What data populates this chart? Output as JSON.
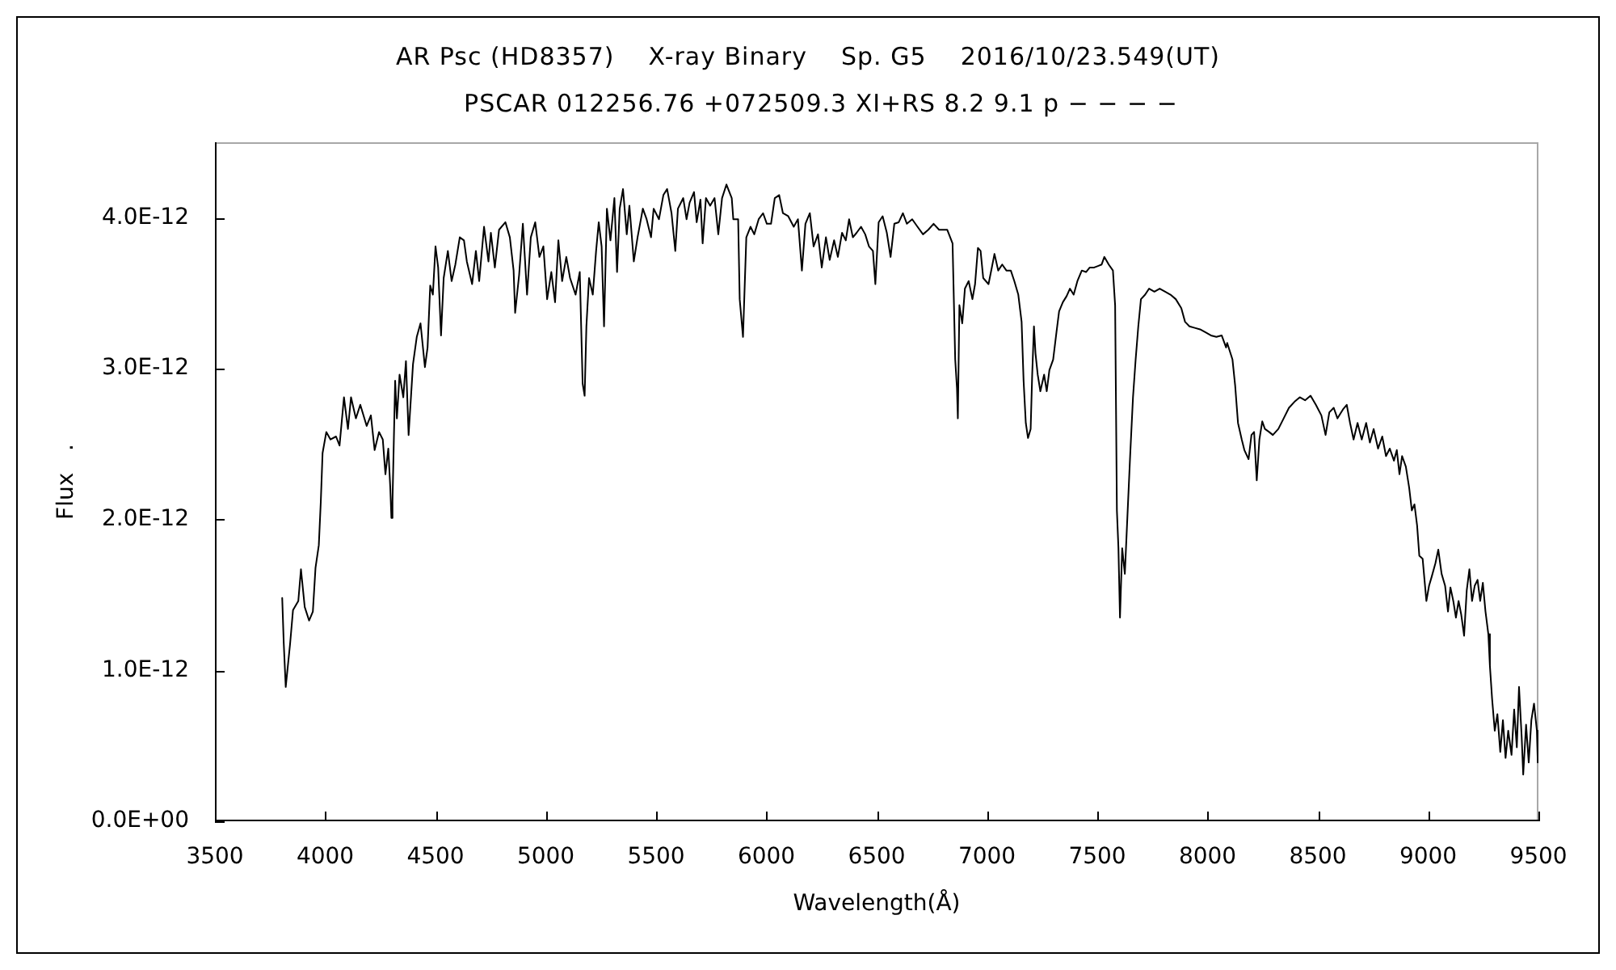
{
  "chart_data": {
    "type": "line",
    "title": "AR Psc (HD8357)    X-ray Binary    Sp. G5    2016/10/23.549(UT)",
    "subtitle": "PSCAR 012256.76 +072509.3 XI+RS 8.2 9.1 p − − − −",
    "xlabel": "Wavelength(Å)",
    "ylabel": "Flux   .",
    "color": "#000000",
    "xlim": [
      3500,
      9500
    ],
    "xticks": [
      3500,
      4000,
      4500,
      5000,
      5500,
      6000,
      6500,
      7000,
      7500,
      8000,
      8500,
      9000,
      9500
    ],
    "ylim": [
      0,
      4.5e-12
    ],
    "yticks": [
      {
        "value": 0,
        "label": "0.0E+00"
      },
      {
        "value": 1e-12,
        "label": "1.0E-12"
      },
      {
        "value": 2e-12,
        "label": "2.0E-12"
      },
      {
        "value": 3e-12,
        "label": "3.0E-12"
      },
      {
        "value": 4e-12,
        "label": "4.0E-12"
      }
    ],
    "x": [
      3805,
      3812,
      3821,
      3841,
      3854,
      3878,
      3890,
      3907,
      3927,
      3944,
      3956,
      3971,
      3980,
      3988,
      4005,
      4024,
      4049,
      4065,
      4085,
      4103,
      4117,
      4139,
      4159,
      4188,
      4207,
      4224,
      4244,
      4261,
      4273,
      4286,
      4295,
      4300,
      4305,
      4317,
      4325,
      4337,
      4354,
      4366,
      4378,
      4398,
      4415,
      4432,
      4452,
      4464,
      4476,
      4488,
      4500,
      4512,
      4525,
      4537,
      4556,
      4573,
      4590,
      4610,
      4629,
      4642,
      4666,
      4683,
      4698,
      4720,
      4740,
      4751,
      4769,
      4788,
      4817,
      4837,
      4854,
      4861,
      4879,
      4896,
      4915,
      4932,
      4952,
      4971,
      4989,
      5006,
      5025,
      5042,
      5057,
      5074,
      5093,
      5110,
      5135,
      5154,
      5167,
      5176,
      5184,
      5196,
      5213,
      5228,
      5240,
      5253,
      5264,
      5277,
      5293,
      5311,
      5323,
      5335,
      5350,
      5367,
      5379,
      5399,
      5416,
      5440,
      5457,
      5477,
      5489,
      5513,
      5533,
      5550,
      5570,
      5587,
      5599,
      5623,
      5638,
      5652,
      5672,
      5684,
      5701,
      5711,
      5726,
      5745,
      5765,
      5782,
      5799,
      5819,
      5843,
      5850,
      5872,
      5879,
      5894,
      5909,
      5928,
      5945,
      5965,
      5985,
      6002,
      6021,
      6038,
      6058,
      6075,
      6099,
      6124,
      6143,
      6161,
      6177,
      6197,
      6214,
      6234,
      6251,
      6270,
      6287,
      6307,
      6324,
      6343,
      6360,
      6375,
      6392,
      6409,
      6429,
      6448,
      6465,
      6483,
      6494,
      6509,
      6527,
      6546,
      6563,
      6580,
      6600,
      6619,
      6637,
      6661,
      6685,
      6710,
      6734,
      6758,
      6783,
      6820,
      6844,
      6856,
      6864,
      6868,
      6875,
      6888,
      6900,
      6917,
      6934,
      6946,
      6959,
      6971,
      6983,
      7007,
      7022,
      7034,
      7051,
      7069,
      7088,
      7108,
      7124,
      7142,
      7157,
      7166,
      7176,
      7186,
      7198,
      7205,
      7213,
      7220,
      7230,
      7242,
      7259,
      7271,
      7283,
      7300,
      7315,
      7327,
      7344,
      7361,
      7376,
      7393,
      7410,
      7430,
      7449,
      7466,
      7486,
      7503,
      7520,
      7532,
      7552,
      7571,
      7581,
      7589,
      7596,
      7603,
      7613,
      7625,
      7637,
      7649,
      7662,
      7674,
      7686,
      7698,
      7717,
      7735,
      7759,
      7783,
      7808,
      7832,
      7856,
      7881,
      7898,
      7918,
      7942,
      7966,
      7991,
      8015,
      8040,
      8064,
      8084,
      8089,
      8113,
      8125,
      8138,
      8155,
      8167,
      8186,
      8199,
      8211,
      8223,
      8235,
      8248,
      8260,
      8279,
      8296,
      8321,
      8345,
      8369,
      8394,
      8418,
      8442,
      8467,
      8491,
      8516,
      8535,
      8552,
      8572,
      8589,
      8614,
      8631,
      8646,
      8662,
      8680,
      8699,
      8719,
      8736,
      8753,
      8773,
      8792,
      8809,
      8826,
      8845,
      8858,
      8870,
      8882,
      8899,
      8914,
      8926,
      8938,
      8950,
      8960,
      8975,
      8992,
      9004,
      9016,
      9033,
      9046,
      9061,
      9077,
      9090,
      9101,
      9114,
      9126,
      9138,
      9150,
      9163,
      9175,
      9187,
      9199,
      9211,
      9224,
      9236,
      9248,
      9260,
      9273,
      9280,
      9290,
      9302,
      9314,
      9327,
      9339,
      9351,
      9363,
      9378,
      9390,
      9402,
      9412,
      9424,
      9431,
      9444,
      9456,
      9468,
      9480,
      9493,
      9497
    ],
    "values": [
      1.48e-12,
      1.18e-12,
      8.9e-13,
      1.18e-12,
      1.4e-12,
      1.46e-12,
      1.67e-12,
      1.42e-12,
      1.33e-12,
      1.39e-12,
      1.68e-12,
      1.83e-12,
      2.12e-12,
      2.44e-12,
      2.58e-12,
      2.53e-12,
      2.55e-12,
      2.49e-12,
      2.81e-12,
      2.6e-12,
      2.81e-12,
      2.67e-12,
      2.76e-12,
      2.62e-12,
      2.69e-12,
      2.46e-12,
      2.58e-12,
      2.53e-12,
      2.3e-12,
      2.47e-12,
      2.21e-12,
      2.01e-12,
      2.12e-12,
      2.92e-12,
      2.67e-12,
      2.96e-12,
      2.81e-12,
      3.05e-12,
      2.56e-12,
      3.03e-12,
      3.21e-12,
      3.3e-12,
      3.01e-12,
      3.14e-12,
      3.55e-12,
      3.49e-12,
      3.81e-12,
      3.67e-12,
      3.22e-12,
      3.6e-12,
      3.78e-12,
      3.58e-12,
      3.69e-12,
      3.87e-12,
      3.85e-12,
      3.71e-12,
      3.56e-12,
      3.78e-12,
      3.58e-12,
      3.94e-12,
      3.71e-12,
      3.9e-12,
      3.67e-12,
      3.92e-12,
      3.97e-12,
      3.87e-12,
      3.65e-12,
      3.37e-12,
      3.62e-12,
      3.96e-12,
      3.49e-12,
      3.87e-12,
      3.97e-12,
      3.74e-12,
      3.81e-12,
      3.46e-12,
      3.64e-12,
      3.44e-12,
      3.85e-12,
      3.58e-12,
      3.74e-12,
      3.6e-12,
      3.49e-12,
      3.64e-12,
      2.9e-12,
      2.82e-12,
      3.28e-12,
      3.6e-12,
      3.49e-12,
      3.78e-12,
      3.97e-12,
      3.81e-12,
      3.28e-12,
      4.06e-12,
      3.85e-12,
      4.13e-12,
      3.64e-12,
      4.06e-12,
      4.19e-12,
      3.89e-12,
      4.08e-12,
      3.71e-12,
      3.87e-12,
      4.06e-12,
      3.99e-12,
      3.87e-12,
      4.06e-12,
      3.99e-12,
      4.15e-12,
      4.19e-12,
      4.03e-12,
      3.78e-12,
      4.06e-12,
      4.13e-12,
      3.99e-12,
      4.1e-12,
      4.17e-12,
      3.97e-12,
      4.12e-12,
      3.83e-12,
      4.13e-12,
      4.08e-12,
      4.13e-12,
      3.89e-12,
      4.13e-12,
      4.22e-12,
      4.13e-12,
      3.99e-12,
      3.99e-12,
      3.46e-12,
      3.21e-12,
      3.87e-12,
      3.94e-12,
      3.89e-12,
      3.99e-12,
      4.03e-12,
      3.96e-12,
      3.96e-12,
      4.13e-12,
      4.15e-12,
      4.03e-12,
      4.01e-12,
      3.94e-12,
      3.99e-12,
      3.65e-12,
      3.96e-12,
      4.03e-12,
      3.81e-12,
      3.89e-12,
      3.67e-12,
      3.87e-12,
      3.72e-12,
      3.85e-12,
      3.74e-12,
      3.9e-12,
      3.85e-12,
      3.99e-12,
      3.87e-12,
      3.9e-12,
      3.94e-12,
      3.89e-12,
      3.81e-12,
      3.78e-12,
      3.56e-12,
      3.97e-12,
      4.01e-12,
      3.9e-12,
      3.74e-12,
      3.96e-12,
      3.97e-12,
      4.03e-12,
      3.96e-12,
      3.99e-12,
      3.94e-12,
      3.89e-12,
      3.92e-12,
      3.96e-12,
      3.92e-12,
      3.92e-12,
      3.83e-12,
      3.06e-12,
      2.87e-12,
      2.67e-12,
      3.42e-12,
      3.3e-12,
      3.53e-12,
      3.58e-12,
      3.46e-12,
      3.56e-12,
      3.8e-12,
      3.78e-12,
      3.6e-12,
      3.56e-12,
      3.67e-12,
      3.76e-12,
      3.65e-12,
      3.69e-12,
      3.65e-12,
      3.65e-12,
      3.58e-12,
      3.49e-12,
      3.31e-12,
      2.92e-12,
      2.64e-12,
      2.54e-12,
      2.6e-12,
      2.96e-12,
      3.28e-12,
      3.1e-12,
      2.96e-12,
      2.85e-12,
      2.96e-12,
      2.85e-12,
      2.99e-12,
      3.06e-12,
      3.24e-12,
      3.38e-12,
      3.44e-12,
      3.48e-12,
      3.53e-12,
      3.49e-12,
      3.58e-12,
      3.65e-12,
      3.64e-12,
      3.67e-12,
      3.67e-12,
      3.68e-12,
      3.69e-12,
      3.74e-12,
      3.69e-12,
      3.65e-12,
      3.42e-12,
      2.06e-12,
      1.81e-12,
      1.35e-12,
      1.81e-12,
      1.64e-12,
      2.03e-12,
      2.42e-12,
      2.81e-12,
      3.06e-12,
      3.28e-12,
      3.46e-12,
      3.49e-12,
      3.53e-12,
      3.51e-12,
      3.53e-12,
      3.51e-12,
      3.49e-12,
      3.46e-12,
      3.4e-12,
      3.31e-12,
      3.28e-12,
      3.27e-12,
      3.26e-12,
      3.24e-12,
      3.22e-12,
      3.21e-12,
      3.22e-12,
      3.14e-12,
      3.17e-12,
      3.06e-12,
      2.89e-12,
      2.64e-12,
      2.53e-12,
      2.46e-12,
      2.4e-12,
      2.56e-12,
      2.58e-12,
      2.26e-12,
      2.53e-12,
      2.65e-12,
      2.6e-12,
      2.58e-12,
      2.56e-12,
      2.6e-12,
      2.67e-12,
      2.74e-12,
      2.78e-12,
      2.81e-12,
      2.79e-12,
      2.82e-12,
      2.76e-12,
      2.69e-12,
      2.56e-12,
      2.71e-12,
      2.74e-12,
      2.67e-12,
      2.73e-12,
      2.76e-12,
      2.64e-12,
      2.53e-12,
      2.64e-12,
      2.53e-12,
      2.64e-12,
      2.51e-12,
      2.6e-12,
      2.47e-12,
      2.55e-12,
      2.42e-12,
      2.47e-12,
      2.39e-12,
      2.46e-12,
      2.3e-12,
      2.42e-12,
      2.35e-12,
      2.21e-12,
      2.06e-12,
      2.1e-12,
      1.96e-12,
      1.76e-12,
      1.74e-12,
      1.46e-12,
      1.56e-12,
      1.62e-12,
      1.71e-12,
      1.8e-12,
      1.64e-12,
      1.56e-12,
      1.39e-12,
      1.55e-12,
      1.46e-12,
      1.35e-12,
      1.46e-12,
      1.37e-12,
      1.23e-12,
      1.53e-12,
      1.67e-12,
      1.46e-12,
      1.56e-12,
      1.6e-12,
      1.46e-12,
      1.58e-12,
      1.39e-12,
      1.24e-12,
      1.03e-12,
      8.1e-13,
      6e-13,
      7.1e-13,
      4.6e-13,
      6.7e-13,
      4.2e-13,
      6e-13,
      4.4e-13,
      7.4e-13,
      4.9e-13,
      8.9e-13,
      5.6e-13,
      3.1e-13,
      6.4e-13,
      3.9e-13,
      6.7e-13,
      7.8e-13,
      6e-13,
      3.9e-13
    ]
  }
}
